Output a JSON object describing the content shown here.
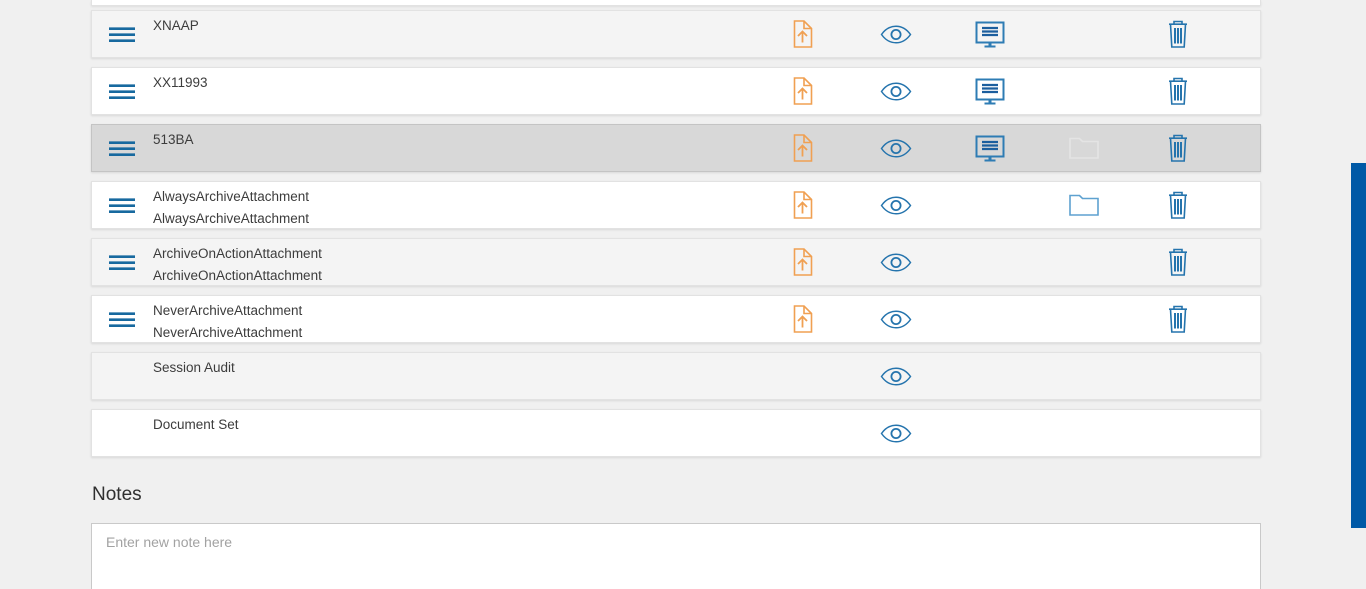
{
  "list": {
    "rows": [
      {
        "title": "XNAAP",
        "subtitle": "",
        "drag": true,
        "tone": "gray",
        "selected": false,
        "actions": [
          "upload",
          "view",
          "display",
          "",
          "delete"
        ]
      },
      {
        "title": "XX11993",
        "subtitle": "",
        "drag": true,
        "tone": "white",
        "selected": false,
        "actions": [
          "upload",
          "view",
          "display",
          "",
          "delete"
        ]
      },
      {
        "title": "513BA",
        "subtitle": "",
        "drag": true,
        "tone": "selected",
        "selected": true,
        "actions": [
          "upload",
          "view",
          "display",
          "folder-disabled",
          "delete"
        ]
      },
      {
        "title": "AlwaysArchiveAttachment",
        "subtitle": "AlwaysArchiveAttachment",
        "drag": true,
        "tone": "white",
        "selected": false,
        "actions": [
          "upload",
          "view",
          "",
          "folder",
          "delete"
        ]
      },
      {
        "title": "ArchiveOnActionAttachment",
        "subtitle": "ArchiveOnActionAttachment",
        "drag": true,
        "tone": "gray",
        "selected": false,
        "actions": [
          "upload",
          "view",
          "",
          "",
          "delete"
        ]
      },
      {
        "title": "NeverArchiveAttachment",
        "subtitle": "NeverArchiveAttachment",
        "drag": true,
        "tone": "white",
        "selected": false,
        "actions": [
          "upload",
          "view",
          "",
          "",
          "delete"
        ]
      },
      {
        "title": "Session Audit",
        "subtitle": "",
        "drag": false,
        "tone": "gray",
        "selected": false,
        "actions": [
          "",
          "view",
          "",
          "",
          ""
        ]
      },
      {
        "title": "Document Set",
        "subtitle": "",
        "drag": false,
        "tone": "white",
        "selected": false,
        "actions": [
          "",
          "view",
          "",
          "",
          ""
        ]
      }
    ]
  },
  "notes": {
    "heading": "Notes",
    "placeholder": "Enter new note here"
  },
  "icons": {
    "drag": "drag-handle-icon",
    "upload": "upload-document-icon",
    "view": "eye-icon",
    "display": "display-monitor-icon",
    "folder": "archive-folder-icon",
    "delete": "trash-icon"
  },
  "colors": {
    "accent_orange": "#F0A052",
    "icon_blue": "#2574AD",
    "folder_blue": "#5EA1D0",
    "drag_handle_blue": "#17699F",
    "scrollbar_blue": "#0059A6",
    "selected_row_gray": "#D8D8D8",
    "page_background": "#F0F0F0"
  }
}
